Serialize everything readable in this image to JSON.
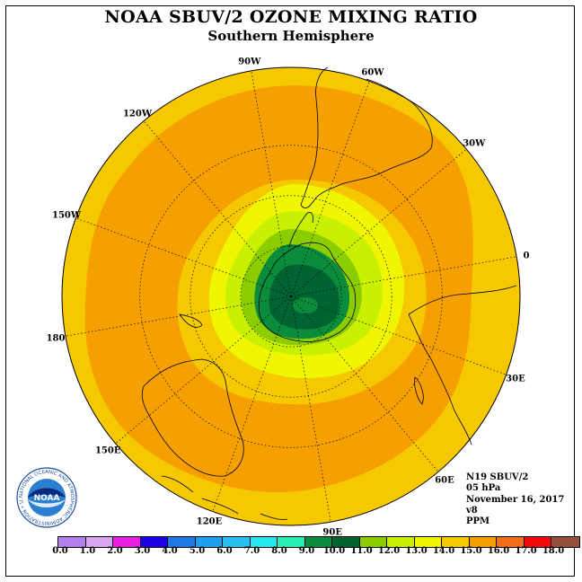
{
  "title": "NOAA SBUV/2 OZONE MIXING RATIO",
  "subtitle": "Southern Hemisphere",
  "longitude_labels": [
    "90W",
    "60W",
    "30W",
    "0",
    "30E",
    "60E",
    "90E",
    "120E",
    "150E",
    "180",
    "150W",
    "120W"
  ],
  "info": {
    "satellite": "N19 SBUV/2",
    "level": "05 hPa",
    "date": "November 16, 2017",
    "version": "v8",
    "units": "PPM"
  },
  "logo": {
    "text": "NOAA",
    "ring_text": "NATIONAL OCEANIC AND ATMOSPHERIC ADMINISTRATION • U.S. DEPARTMENT OF COMMERCE"
  },
  "colorbar": {
    "ticks": [
      "0.0",
      "1.0",
      "2.0",
      "3.0",
      "4.0",
      "5.0",
      "6.0",
      "7.0",
      "8.0",
      "9.0",
      "10.0",
      "11.0",
      "12.0",
      "13.0",
      "14.0",
      "15.0",
      "16.0",
      "17.0",
      "18.0"
    ],
    "colors": [
      "#b57ff0",
      "#d8a6f0",
      "#e81ee0",
      "#1e00e6",
      "#1e78e6",
      "#1ea0f0",
      "#28c0f0",
      "#28e6f0",
      "#28f0b4",
      "#0a8c3c",
      "#006432",
      "#8ccd00",
      "#c8f000",
      "#f0f500",
      "#f5c800",
      "#f5a000",
      "#f56e14",
      "#f50a0a",
      "#96503c"
    ]
  },
  "map_colors": {
    "c14": "#f5c800",
    "c15": "#f5a000",
    "c13": "#f0f500",
    "c12": "#c8f000",
    "c11": "#8ccd00",
    "c10": "#006432",
    "c9": "#0a8c3c"
  }
}
